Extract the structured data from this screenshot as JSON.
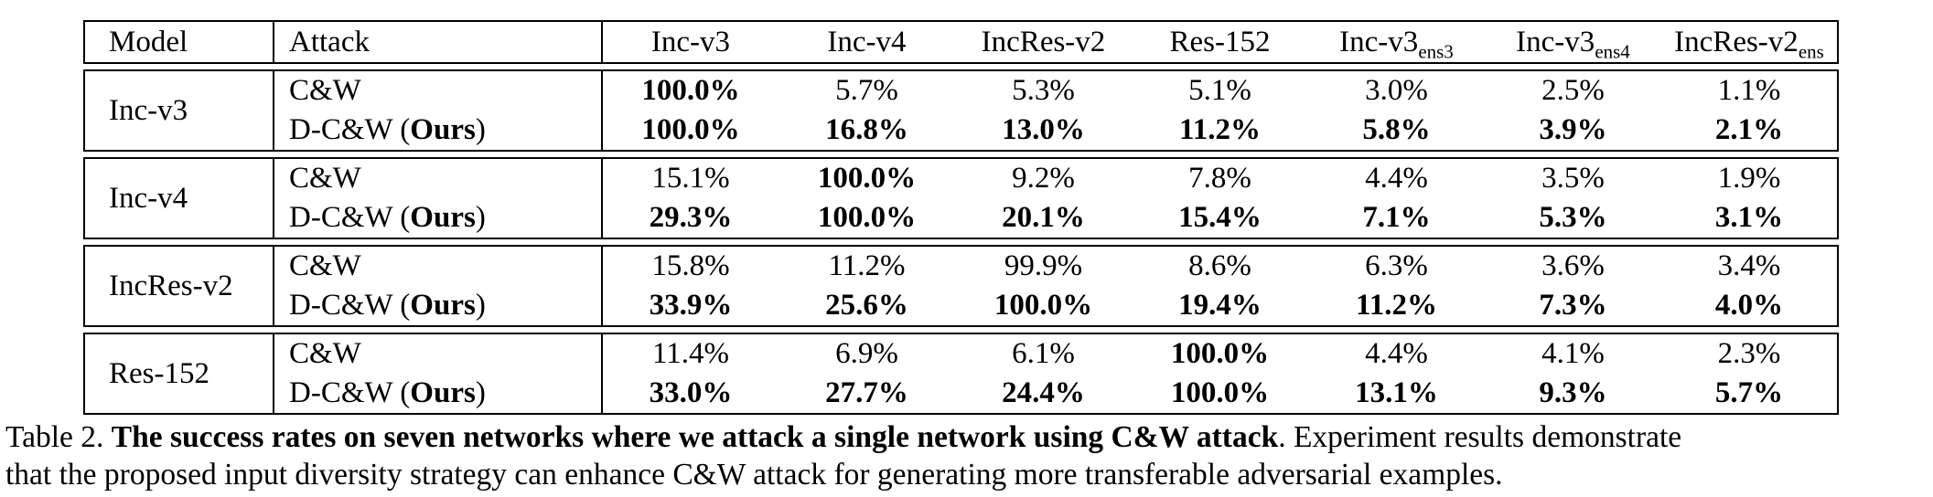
{
  "header": {
    "model": "Model",
    "attack": "Attack",
    "networks": [
      {
        "base": "Inc-v3",
        "sub": ""
      },
      {
        "base": "Inc-v4",
        "sub": ""
      },
      {
        "base": "IncRes-v2",
        "sub": ""
      },
      {
        "base": "Res-152",
        "sub": ""
      },
      {
        "base": "Inc-v3",
        "sub": "ens3"
      },
      {
        "base": "Inc-v3",
        "sub": "ens4"
      },
      {
        "base": "IncRes-v2",
        "sub": "ens"
      }
    ]
  },
  "groups": [
    {
      "model": "Inc-v3",
      "rows": [
        {
          "attack": {
            "pre": "C&W",
            "bold": "",
            "post": ""
          },
          "values": [
            "100.0%",
            "5.7%",
            "5.3%",
            "5.1%",
            "3.0%",
            "2.5%",
            "1.1%"
          ]
        },
        {
          "attack": {
            "pre": "D-C&W (",
            "bold": "Ours",
            "post": ")"
          },
          "values": [
            "100.0%",
            "16.8%",
            "13.0%",
            "11.2%",
            "5.8%",
            "3.9%",
            "2.1%"
          ]
        }
      ]
    },
    {
      "model": "Inc-v4",
      "rows": [
        {
          "attack": {
            "pre": "C&W",
            "bold": "",
            "post": ""
          },
          "values": [
            "15.1%",
            "100.0%",
            "9.2%",
            "7.8%",
            "4.4%",
            "3.5%",
            "1.9%"
          ]
        },
        {
          "attack": {
            "pre": "D-C&W (",
            "bold": "Ours",
            "post": ")"
          },
          "values": [
            "29.3%",
            "100.0%",
            "20.1%",
            "15.4%",
            "7.1%",
            "5.3%",
            "3.1%"
          ]
        }
      ]
    },
    {
      "model": "IncRes-v2",
      "rows": [
        {
          "attack": {
            "pre": "C&W",
            "bold": "",
            "post": ""
          },
          "values": [
            "15.8%",
            "11.2%",
            "99.9%",
            "8.6%",
            "6.3%",
            "3.6%",
            "3.4%"
          ]
        },
        {
          "attack": {
            "pre": "D-C&W (",
            "bold": "Ours",
            "post": ")"
          },
          "values": [
            "33.9%",
            "25.6%",
            "100.0%",
            "19.4%",
            "11.2%",
            "7.3%",
            "4.0%"
          ]
        }
      ]
    },
    {
      "model": "Res-152",
      "rows": [
        {
          "attack": {
            "pre": "C&W",
            "bold": "",
            "post": ""
          },
          "values": [
            "11.4%",
            "6.9%",
            "6.1%",
            "100.0%",
            "4.4%",
            "4.1%",
            "2.3%"
          ]
        },
        {
          "attack": {
            "pre": "D-C&W (",
            "bold": "Ours",
            "post": ")"
          },
          "values": [
            "33.0%",
            "27.7%",
            "24.4%",
            "100.0%",
            "13.1%",
            "9.3%",
            "5.7%"
          ]
        }
      ]
    }
  ],
  "caption": {
    "prefix": "Table 2. ",
    "bold": "The success rates on seven networks where we attack a single network using C&W attack",
    "rest_line1": ". Experiment results demonstrate",
    "line2": "that the proposed input diversity strategy can enhance C&W attack for generating more transferable adversarial examples."
  }
}
